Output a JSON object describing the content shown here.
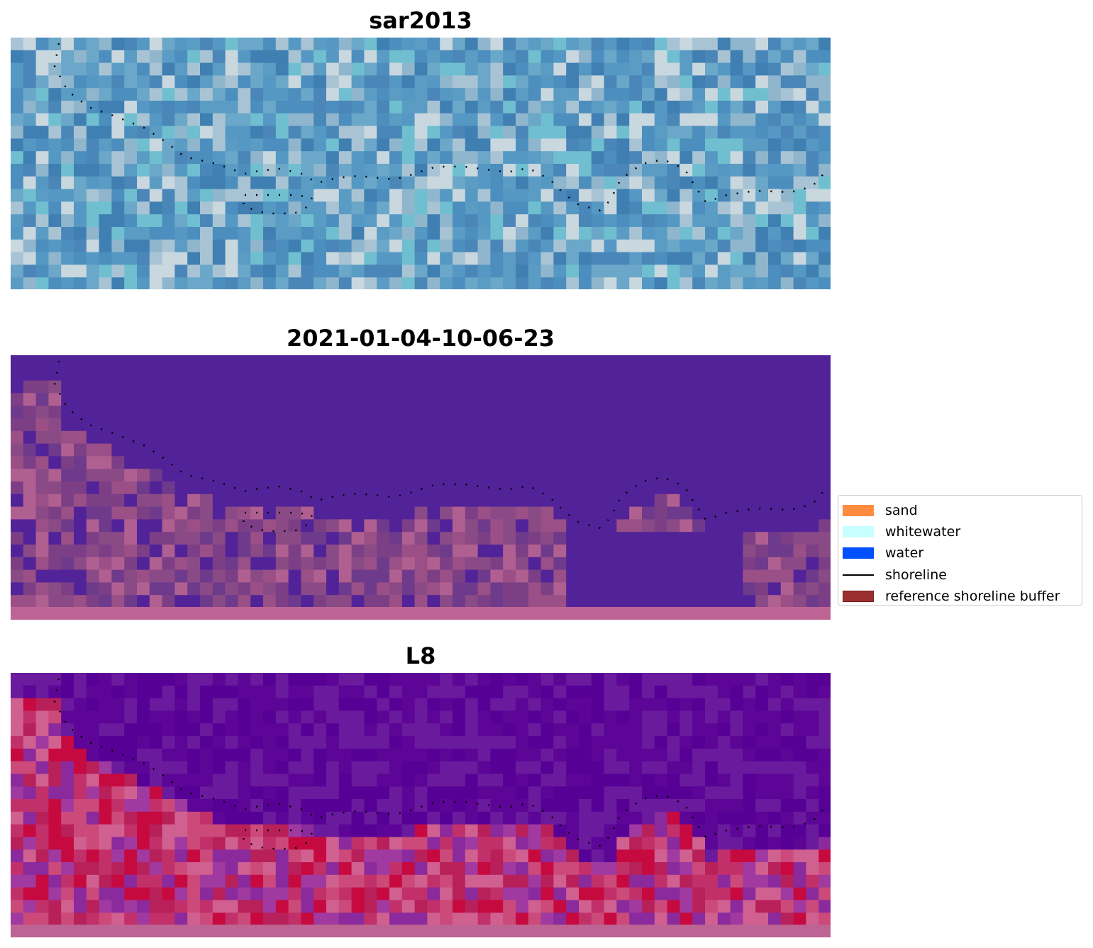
{
  "panels": [
    {
      "id": "sar2013",
      "title": "sar2013",
      "palette": [
        "#4c8ebd",
        "#5598c3",
        "#4a86b8",
        "#6aa7c8",
        "#5a9cc4",
        "#8fb6cc",
        "#3f7fb2",
        "#6fbfd0",
        "#a8c4d4",
        "#c9d7df"
      ],
      "bottom_band": ""
    },
    {
      "id": "classified",
      "title": "2021-01-04-10-06-23",
      "palette": [
        "#522398",
        "#522398",
        "#522398",
        "#8a4a86",
        "#9a4f86",
        "#7c3f86",
        "#b06090",
        "#6e3a8c",
        "#522398",
        "#8e5290"
      ],
      "bottom_band": "#be6494"
    },
    {
      "id": "l8",
      "title": "L8",
      "palette": [
        "#560096",
        "#5c0596",
        "#6a1a9c",
        "#c2306a",
        "#cc4a7a",
        "#b8205a",
        "#d06090",
        "#8a2a9c",
        "#c60a40",
        "#a03aa0"
      ],
      "bottom_band": "#be6494"
    }
  ],
  "legend": {
    "items": [
      {
        "label": "sand",
        "color": "#ff8c3f",
        "type": "patch"
      },
      {
        "label": "whitewater",
        "color": "#c8ffff",
        "type": "patch"
      },
      {
        "label": "water",
        "color": "#0050ff",
        "type": "patch"
      },
      {
        "label": "shoreline",
        "color": "#000000",
        "type": "line"
      },
      {
        "label": "reference shoreline buffer",
        "color": "#9b2e2e",
        "type": "patch"
      }
    ]
  }
}
